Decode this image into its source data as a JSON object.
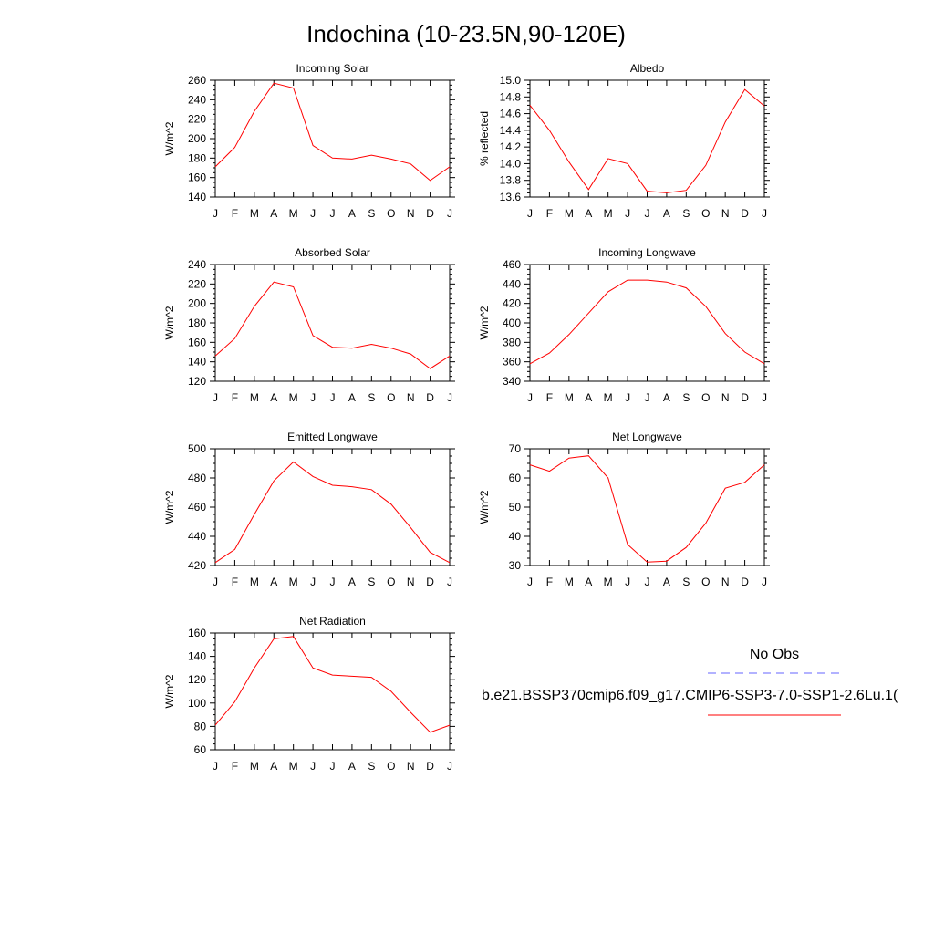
{
  "figure": {
    "title": "Indochina (10-23.5N,90-120E)"
  },
  "legend": {
    "obs_label": "No Obs",
    "model_label": "b.e21.BSSP370cmip6.f09_g17.CMIP6-SSP3-7.0-SSP1-2.6Lu.1(",
    "obs_color": "#6666ff",
    "model_color": "#ff0000"
  },
  "chart_data": [
    {
      "type": "line",
      "title": "Incoming Solar",
      "xlabel": "",
      "ylabel": "W/m^2",
      "categories": [
        "J",
        "F",
        "M",
        "A",
        "M",
        "J",
        "J",
        "A",
        "S",
        "O",
        "N",
        "D",
        "J"
      ],
      "ylim": [
        140,
        260
      ],
      "yticks": [
        140,
        160,
        180,
        200,
        220,
        240,
        260
      ],
      "series": [
        {
          "color": "#ff0000",
          "values": [
            171,
            191,
            228,
            257,
            252,
            193,
            180,
            179,
            183,
            179,
            174,
            157,
            171
          ]
        }
      ]
    },
    {
      "type": "line",
      "title": "Albedo",
      "xlabel": "",
      "ylabel": "% reflected",
      "categories": [
        "J",
        "F",
        "M",
        "A",
        "M",
        "J",
        "J",
        "A",
        "S",
        "O",
        "N",
        "D",
        "J"
      ],
      "ylim": [
        13.6,
        15.0
      ],
      "yticks": [
        "13.6",
        "13.8",
        "14.0",
        "14.2",
        "14.4",
        "14.6",
        "14.8",
        "15.0"
      ],
      "series": [
        {
          "color": "#ff0000",
          "values": [
            14.7,
            14.4,
            14.02,
            13.69,
            14.06,
            14.0,
            13.67,
            13.65,
            13.68,
            13.98,
            14.5,
            14.89,
            14.69
          ]
        }
      ]
    },
    {
      "type": "line",
      "title": "Absorbed Solar",
      "xlabel": "",
      "ylabel": "W/m^2",
      "categories": [
        "J",
        "F",
        "M",
        "A",
        "M",
        "J",
        "J",
        "A",
        "S",
        "O",
        "N",
        "D",
        "J"
      ],
      "ylim": [
        120,
        240
      ],
      "yticks": [
        120,
        140,
        160,
        180,
        200,
        220,
        240
      ],
      "series": [
        {
          "color": "#ff0000",
          "values": [
            146,
            164,
            197,
            222,
            217,
            167,
            155,
            154,
            158,
            154,
            148,
            133,
            146
          ]
        }
      ]
    },
    {
      "type": "line",
      "title": "Incoming Longwave",
      "xlabel": "",
      "ylabel": "W/m^2",
      "categories": [
        "J",
        "F",
        "M",
        "A",
        "M",
        "J",
        "J",
        "A",
        "S",
        "O",
        "N",
        "D",
        "J"
      ],
      "ylim": [
        340,
        460
      ],
      "yticks": [
        340,
        360,
        380,
        400,
        420,
        440,
        460
      ],
      "series": [
        {
          "color": "#ff0000",
          "values": [
            358,
            369,
            388,
            410,
            432,
            444,
            444,
            442,
            436,
            417,
            389,
            370,
            358
          ]
        }
      ]
    },
    {
      "type": "line",
      "title": "Emitted Longwave",
      "xlabel": "",
      "ylabel": "W/m^2",
      "categories": [
        "J",
        "F",
        "M",
        "A",
        "M",
        "J",
        "J",
        "A",
        "S",
        "O",
        "N",
        "D",
        "J"
      ],
      "ylim": [
        420,
        500
      ],
      "yticks": [
        420,
        440,
        460,
        480,
        500
      ],
      "series": [
        {
          "color": "#ff0000",
          "values": [
            422,
            431,
            455,
            478,
            491,
            481,
            475,
            474,
            472,
            462,
            446,
            429,
            422
          ]
        }
      ]
    },
    {
      "type": "line",
      "title": "Net Longwave",
      "xlabel": "",
      "ylabel": "W/m^2",
      "categories": [
        "J",
        "F",
        "M",
        "A",
        "M",
        "J",
        "J",
        "A",
        "S",
        "O",
        "N",
        "D",
        "J"
      ],
      "ylim": [
        30,
        70
      ],
      "yticks": [
        30,
        40,
        50,
        60,
        70
      ],
      "series": [
        {
          "color": "#ff0000",
          "values": [
            64.5,
            62.3,
            66.8,
            67.6,
            60,
            37.2,
            31.2,
            31.5,
            36.2,
            44.5,
            56.5,
            58.5,
            64.5
          ]
        }
      ]
    },
    {
      "type": "line",
      "title": "Net Radiation",
      "xlabel": "",
      "ylabel": "W/m^2",
      "categories": [
        "J",
        "F",
        "M",
        "A",
        "M",
        "J",
        "J",
        "A",
        "S",
        "O",
        "N",
        "D",
        "J"
      ],
      "ylim": [
        60,
        160
      ],
      "yticks": [
        60,
        80,
        100,
        120,
        140,
        160
      ],
      "series": [
        {
          "color": "#ff0000",
          "values": [
            81,
            101,
            130,
            155,
            157,
            130,
            124,
            123,
            122,
            110,
            92,
            75,
            81
          ]
        }
      ]
    }
  ]
}
